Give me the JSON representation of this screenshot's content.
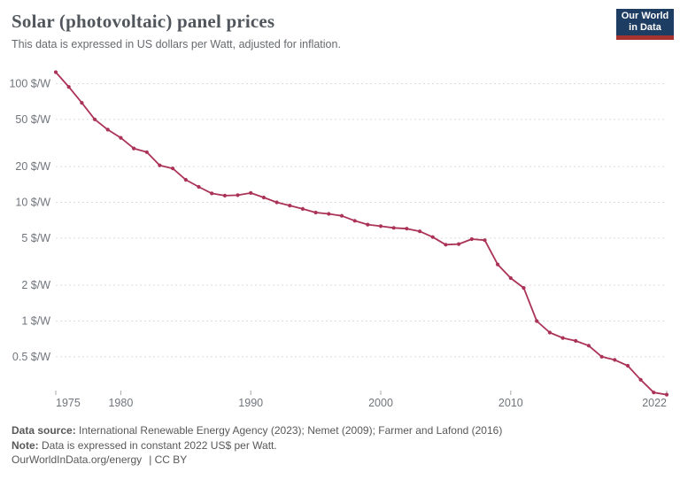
{
  "header": {
    "title": "Solar (photovoltaic) panel prices",
    "subtitle": "This data is expressed in US dollars per Watt, adjusted for inflation.",
    "logo": {
      "line1": "Our World",
      "line2": "in Data",
      "bg_color": "#1d3d63",
      "bar_color": "#a5342e"
    }
  },
  "chart_data": {
    "type": "line",
    "title": "Solar (photovoltaic) panel prices",
    "unit": "US dollars per Watt, adjusted for inflation (constant 2022 US$)",
    "yscale": "log",
    "grid": "dashed horizontal gridlines",
    "legend": "none",
    "line_color": "#ab3358",
    "xlim": [
      1975,
      2022
    ],
    "ylim": [
      0.2,
      150
    ],
    "x": [
      1975,
      1976,
      1977,
      1978,
      1979,
      1980,
      1981,
      1982,
      1983,
      1984,
      1985,
      1986,
      1987,
      1988,
      1989,
      1990,
      1991,
      1992,
      1993,
      1994,
      1995,
      1996,
      1997,
      1998,
      1999,
      2000,
      2001,
      2002,
      2003,
      2004,
      2005,
      2006,
      2007,
      2008,
      2009,
      2010,
      2011,
      2012,
      2013,
      2014,
      2015,
      2016,
      2017,
      2018,
      2019,
      2020,
      2021,
      2022
    ],
    "values": [
      125,
      94,
      69,
      50,
      41,
      35,
      28.5,
      26.5,
      20.5,
      19.3,
      15.5,
      13.5,
      11.9,
      11.4,
      11.5,
      12.0,
      11.0,
      10.0,
      9.4,
      8.8,
      8.2,
      8.0,
      7.7,
      7.0,
      6.5,
      6.3,
      6.1,
      6.0,
      5.7,
      5.1,
      4.4,
      4.45,
      4.9,
      4.8,
      3.0,
      2.3,
      1.9,
      1.0,
      0.8,
      0.72,
      0.68,
      0.62,
      0.5,
      0.47,
      0.42,
      0.32,
      0.25,
      0.24
    ],
    "yticks": [
      {
        "value": 100,
        "label": "100 $/W"
      },
      {
        "value": 50,
        "label": "50 $/W"
      },
      {
        "value": 20,
        "label": "20 $/W"
      },
      {
        "value": 10,
        "label": "10 $/W"
      },
      {
        "value": 5,
        "label": "5 $/W"
      },
      {
        "value": 2,
        "label": "2 $/W"
      },
      {
        "value": 1,
        "label": "1 $/W"
      },
      {
        "value": 0.5,
        "label": "0.5 $/W"
      }
    ],
    "xticks": [
      {
        "year": 1975,
        "label": "1975",
        "align": "start"
      },
      {
        "year": 1980,
        "label": "1980",
        "align": "middle"
      },
      {
        "year": 1990,
        "label": "1990",
        "align": "middle"
      },
      {
        "year": 2000,
        "label": "2000",
        "align": "middle"
      },
      {
        "year": 2010,
        "label": "2010",
        "align": "middle"
      },
      {
        "year": 2022,
        "label": "2022",
        "align": "end"
      }
    ]
  },
  "footer": {
    "source_label": "Data source:",
    "source_text": " International Renewable Energy Agency (2023); Nemet (2009); Farmer and Lafond (2016)",
    "note_label": "Note:",
    "note_text": " Data is expressed in constant 2022 US$ per Watt.",
    "url": "OurWorldInData.org/energy",
    "license": "| CC BY"
  }
}
